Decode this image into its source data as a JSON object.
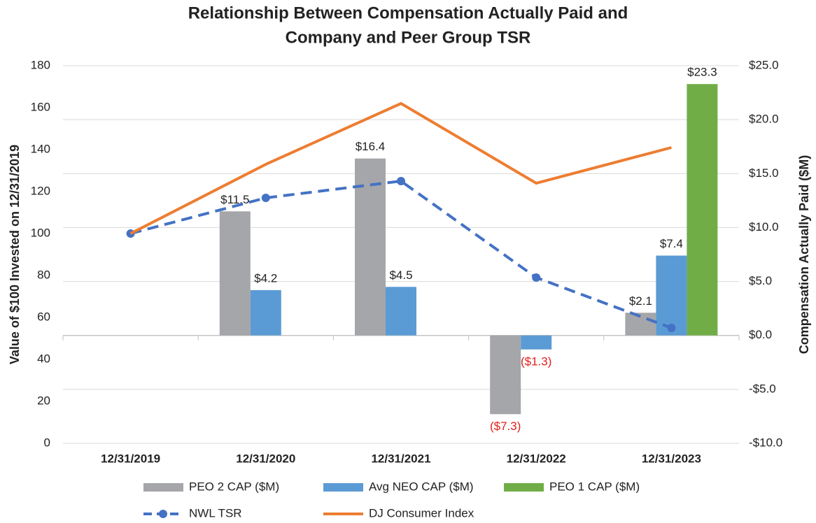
{
  "chart_data": {
    "type": "bar",
    "title": [
      "Relationship Between Compensation Actually Paid and",
      "Company and Peer Group TSR"
    ],
    "y_label": "Value of $100 Invested on 12/31/2019",
    "y2_label": "Compensation Actually Paid ($M)",
    "categories": [
      "12/31/2019",
      "12/31/2020",
      "12/31/2021",
      "12/31/2022",
      "12/31/2023"
    ],
    "ylim": [
      0,
      180
    ],
    "yticks": [
      0,
      20,
      40,
      60,
      80,
      100,
      120,
      140,
      160,
      180
    ],
    "y2lim": [
      -10,
      25
    ],
    "y2ticks": [
      {
        "value": -10,
        "label": "-$10.0"
      },
      {
        "value": -5,
        "label": "-$5.0"
      },
      {
        "value": 0,
        "label": "$0.0"
      },
      {
        "value": 5,
        "label": "$5.0"
      },
      {
        "value": 10,
        "label": "$10.0"
      },
      {
        "value": 15,
        "label": "$15.0"
      },
      {
        "value": 20,
        "label": "$20.0"
      },
      {
        "value": 25,
        "label": "$25.0"
      }
    ],
    "grid": true,
    "negative_label_color": "#e0201b",
    "series": [
      {
        "name": "PEO 2 CAP ($M)",
        "type": "bar",
        "axis": "y2",
        "color": "#a5a6a9",
        "slot": -1,
        "values": [
          null,
          11.5,
          16.4,
          -7.3,
          2.1
        ],
        "value_labels": [
          null,
          "$11.5",
          "$16.4",
          "($7.3)",
          "$2.1"
        ]
      },
      {
        "name": "Avg NEO CAP ($M)",
        "type": "bar",
        "axis": "y2",
        "color": "#5b9bd5",
        "slot": 0,
        "values": [
          null,
          4.2,
          4.5,
          -1.3,
          7.4
        ],
        "value_labels": [
          null,
          "$4.2",
          "$4.5",
          "($1.3)",
          "$7.4"
        ]
      },
      {
        "name": "PEO 1 CAP ($M)",
        "type": "bar",
        "axis": "y2",
        "color": "#70ad47",
        "slot": 1,
        "values": [
          null,
          null,
          null,
          null,
          23.3
        ],
        "value_labels": [
          null,
          null,
          null,
          null,
          "$23.3"
        ]
      },
      {
        "name": "NWL TSR",
        "type": "line",
        "axis": "y",
        "color": "#4472c4",
        "dashed": true,
        "markers": true,
        "values": [
          100,
          117,
          125,
          79,
          55
        ]
      },
      {
        "name": "DJ Consumer Index",
        "type": "line",
        "axis": "y",
        "color": "#ed7d31",
        "dashed": false,
        "markers": false,
        "values": [
          100,
          133,
          162,
          124,
          141
        ]
      }
    ]
  }
}
